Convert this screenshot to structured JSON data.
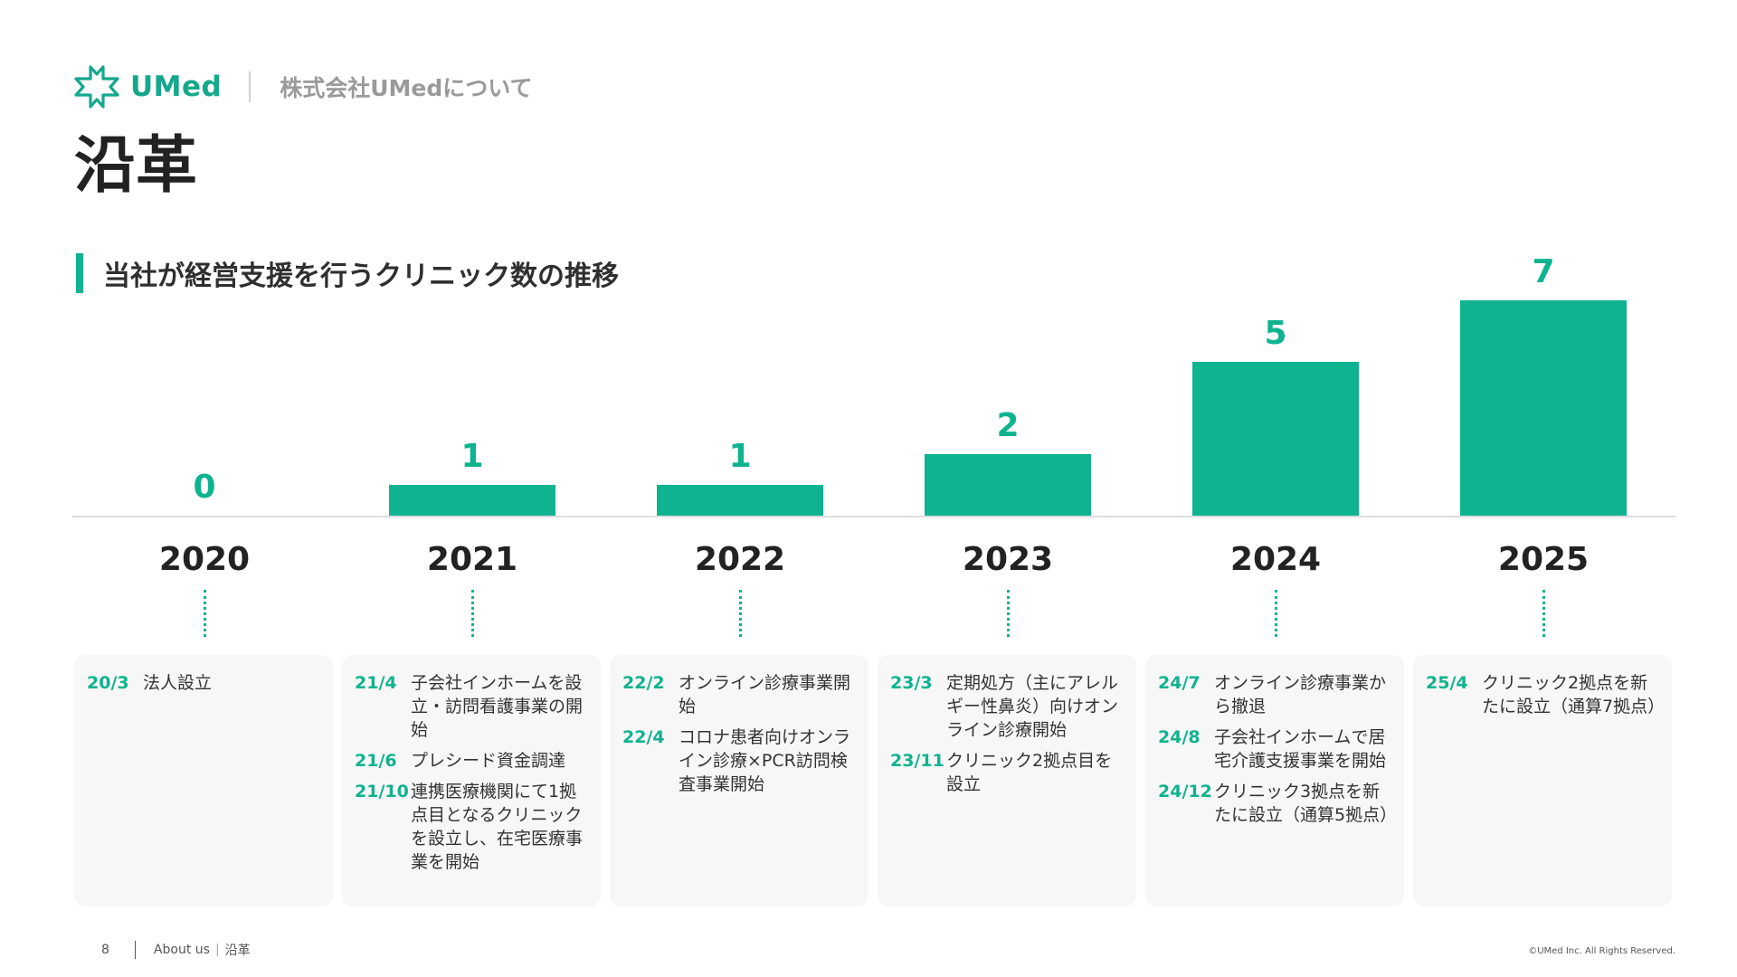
{
  "header": {
    "logo_text": "UMed",
    "subtitle": "株式会社UMedについて",
    "icon": "umed-cross-logo-icon"
  },
  "page_title": "沿革",
  "section_title": "当社が経営支援を行うクリニック数の推移",
  "colors": {
    "accent": "#0fb38f",
    "card_bg": "#f7f7f7",
    "text": "#333333"
  },
  "chart_data": {
    "type": "bar",
    "title": "当社が経営支援を行うクリニック数の推移",
    "categories": [
      "2020",
      "2021",
      "2022",
      "2023",
      "2024",
      "2025"
    ],
    "values": [
      0,
      1,
      1,
      2,
      5,
      7
    ],
    "xlabel": "",
    "ylabel": "",
    "ylim": [
      0,
      7
    ],
    "grid": false,
    "legend": "none"
  },
  "timeline": [
    {
      "events": [
        {
          "date": "20/3",
          "text": "法人設立"
        }
      ]
    },
    {
      "events": [
        {
          "date": "21/4",
          "text": "子会社インホームを設立・訪問看護事業の開始"
        },
        {
          "date": "21/6",
          "text": "プレシード資金調達"
        },
        {
          "date": "21/10",
          "text": "連携医療機関にて1拠点目となるクリニックを設立し、在宅医療事業を開始"
        }
      ]
    },
    {
      "events": [
        {
          "date": "22/2",
          "text": "オンライン診療事業開始"
        },
        {
          "date": "22/4",
          "text": "コロナ患者向けオンライン診療×PCR訪問検査事業開始"
        }
      ]
    },
    {
      "events": [
        {
          "date": "23/3",
          "text": "定期処方（主にアレルギー性鼻炎）向けオンライン診療開始"
        },
        {
          "date": "23/11",
          "text": "クリニック2拠点目を設立"
        }
      ]
    },
    {
      "events": [
        {
          "date": "24/7",
          "text": "オンライン診療事業から撤退"
        },
        {
          "date": "24/8",
          "text": "子会社インホームで居宅介護支援事業を開始"
        },
        {
          "date": "24/12",
          "text": "クリニック3拠点を新たに設立（通算5拠点）"
        }
      ]
    },
    {
      "events": [
        {
          "date": "25/4",
          "text": "クリニック2拠点を新たに設立（通算7拠点）"
        }
      ]
    }
  ],
  "footer": {
    "page_number": "8",
    "section": "About us",
    "subsection": "沿革",
    "copyright": "©UMed Inc. All Rights Reserved."
  }
}
